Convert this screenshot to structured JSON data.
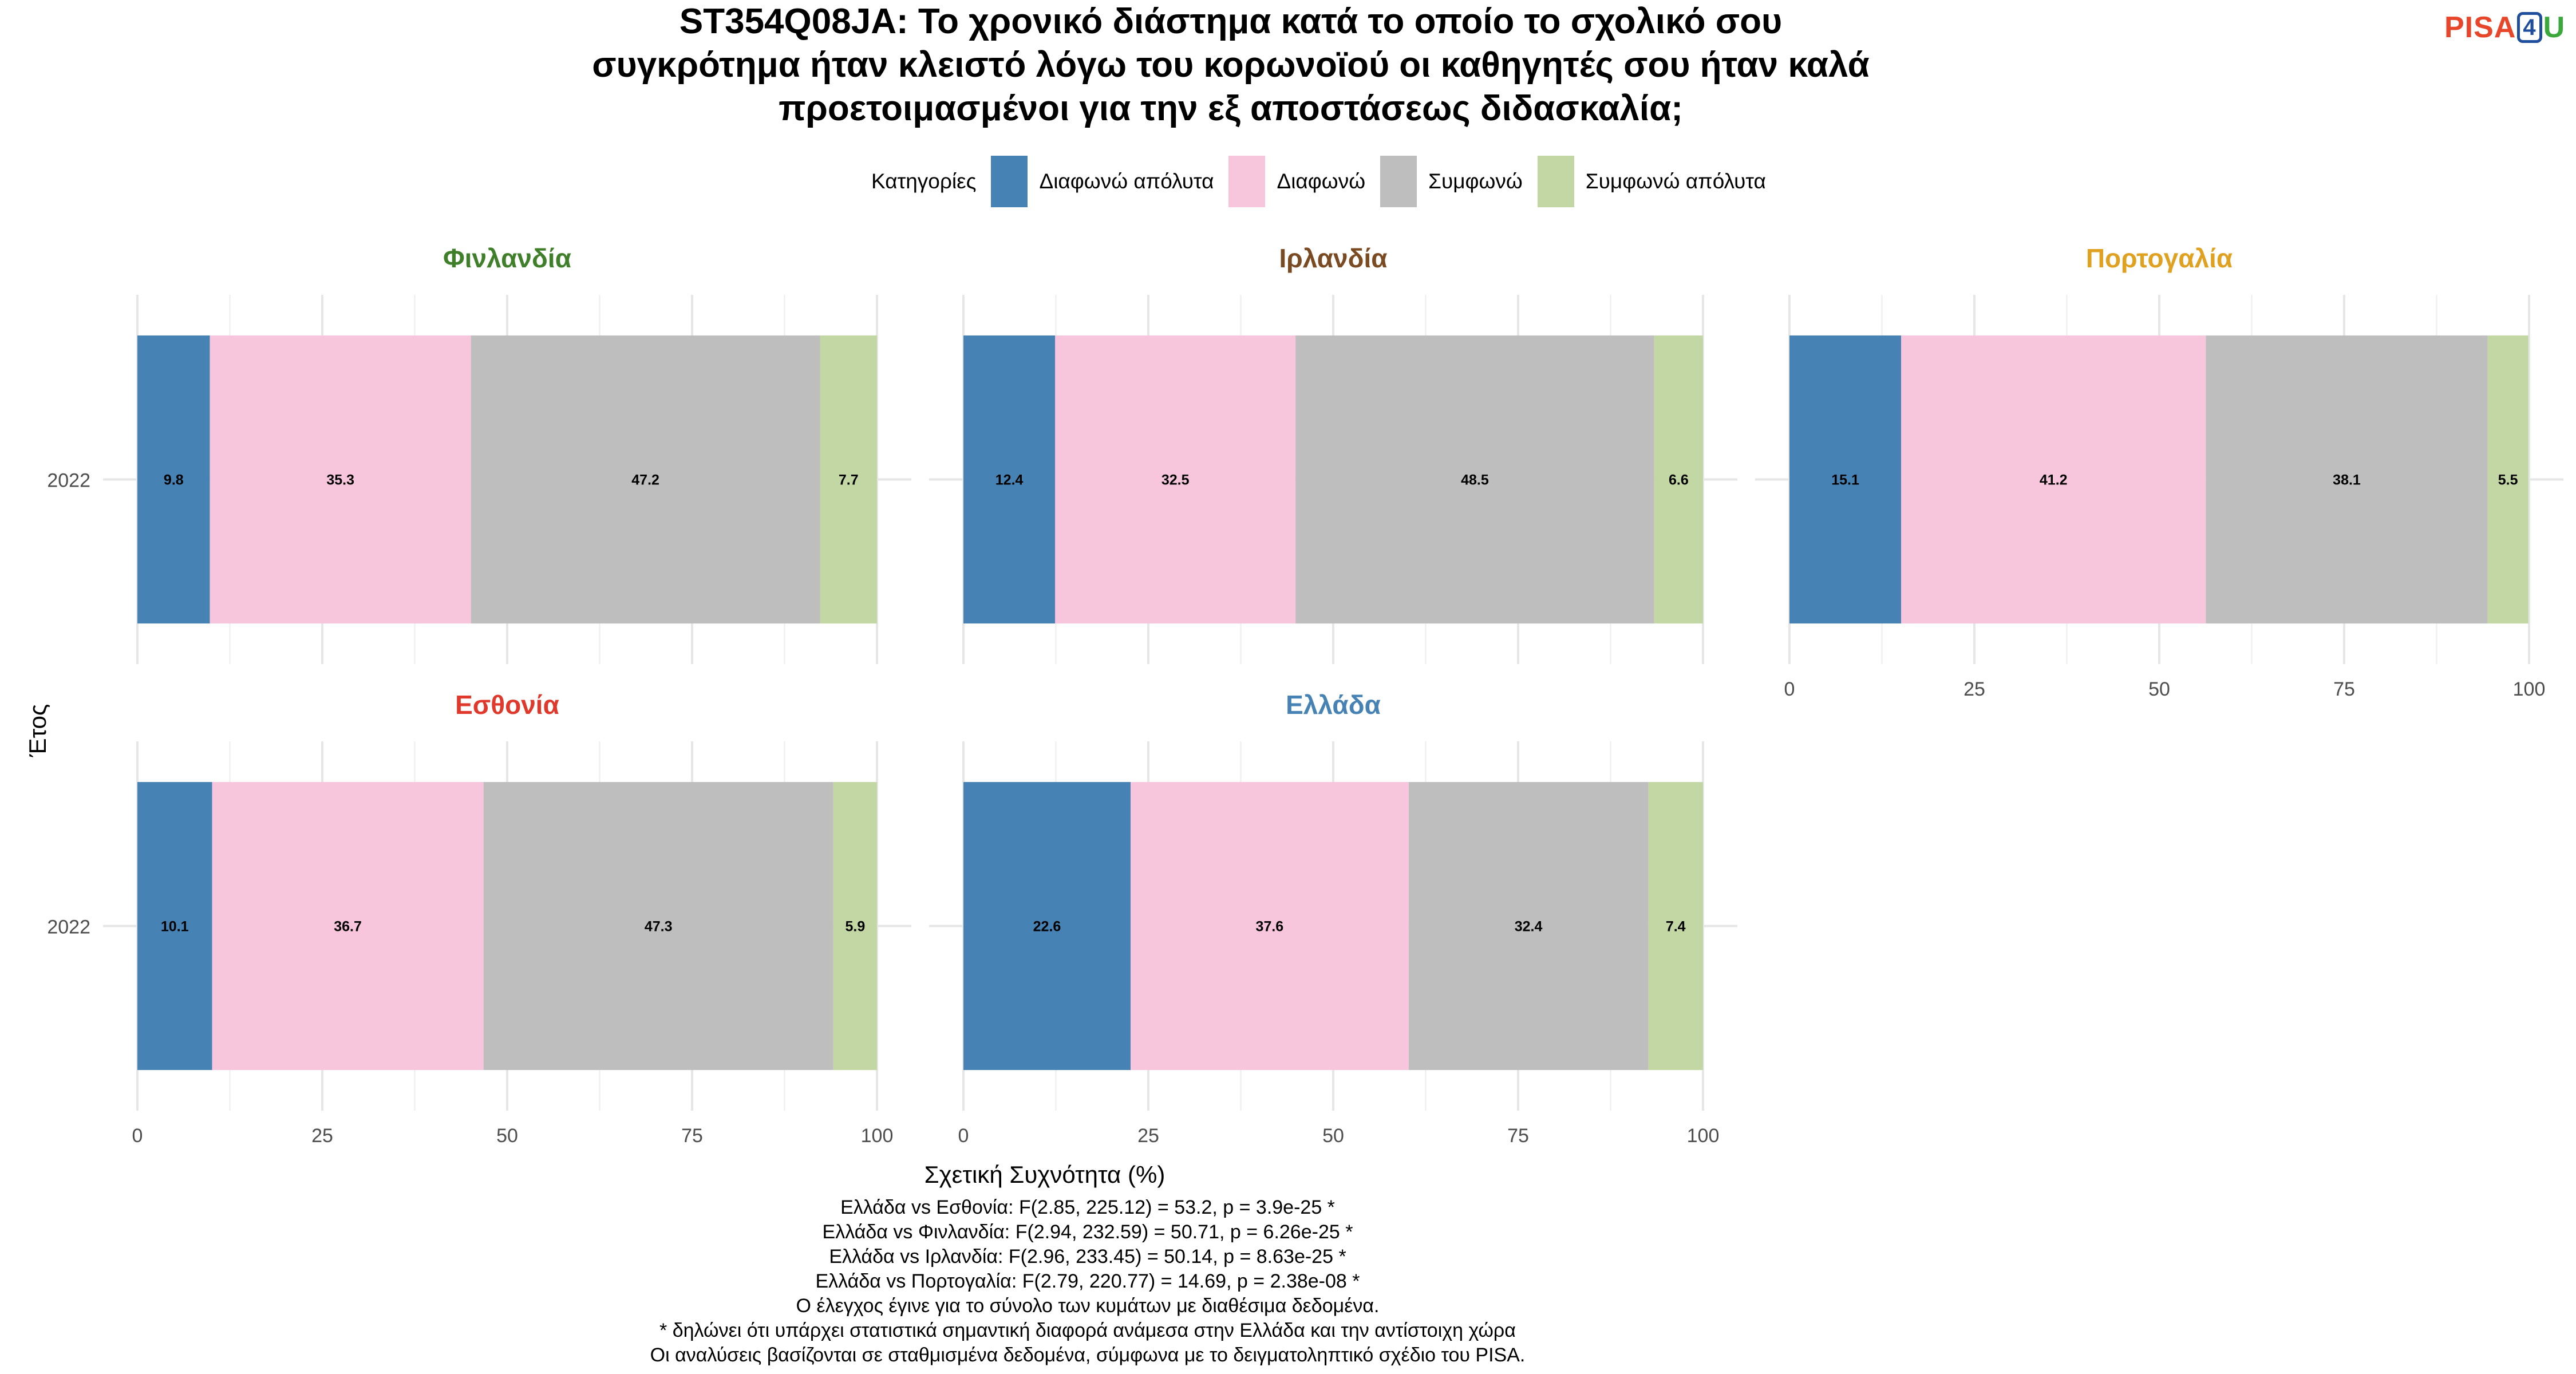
{
  "chart_data": {
    "type": "bar",
    "orientation": "horizontal-stacked",
    "title": "ST354Q08JA: Το χρονικό διάστημα κατά το οποίο το σχολικό σου συγκρότημα ήταν κλειστό λόγω του κορωνοϊού οι καθηγητές σου ήταν καλά προετοιμασμένοι για την εξ αποστάσεως διδασκαλία;",
    "title_lines": [
      "ST354Q08JA: Το χρονικό διάστημα κατά το οποίο το σχολικό σου",
      "συγκρότημα ήταν κλειστό λόγω του κορωνοϊού οι καθηγητές σου ήταν καλά",
      "προετοιμασμένοι για την εξ αποστάσεως διδασκαλία;"
    ],
    "xlabel": "Σχετική Συχνότητα (%)",
    "ylabel": "Έτος",
    "xlim": [
      0,
      100
    ],
    "xticks": [
      "0",
      "25",
      "50",
      "75",
      "100"
    ],
    "grid": true,
    "legend": {
      "title": "Κατηγορίες",
      "placement": "top",
      "items": [
        {
          "label": "Διαφωνώ απόλυτα",
          "color": "#4682b4"
        },
        {
          "label": "Διαφωνώ",
          "color": "#f7c6dc"
        },
        {
          "label": "Συμφωνώ",
          "color": "#bebebe"
        },
        {
          "label": "Συμφωνώ απόλυτα",
          "color": "#c2d7a4"
        }
      ]
    },
    "panels": [
      {
        "name": "Φινλανδία",
        "color": "#3f7f2a",
        "category": "2022",
        "values": [
          9.8,
          35.3,
          47.2,
          7.7
        ],
        "labels": [
          "9.8",
          "35.3",
          "47.2",
          "7.7"
        ]
      },
      {
        "name": "Ιρλανδία",
        "color": "#7a4a22",
        "category": "2022",
        "values": [
          12.4,
          32.5,
          48.5,
          6.6
        ],
        "labels": [
          "12.4",
          "32.5",
          "48.5",
          "6.6"
        ]
      },
      {
        "name": "Πορτογαλία",
        "color": "#e0a020",
        "category": "2022",
        "values": [
          15.1,
          41.2,
          38.1,
          5.5
        ],
        "labels": [
          "15.1",
          "41.2",
          "38.1",
          "5.5"
        ]
      },
      {
        "name": "Εσθονία",
        "color": "#e0382a",
        "category": "2022",
        "values": [
          10.1,
          36.7,
          47.3,
          5.9
        ],
        "labels": [
          "10.1",
          "36.7",
          "47.3",
          "5.9"
        ]
      },
      {
        "name": "Ελλάδα",
        "color": "#4682b4",
        "category": "2022",
        "values": [
          22.6,
          37.6,
          32.4,
          7.4
        ],
        "labels": [
          "22.6",
          "37.6",
          "32.4",
          "7.4"
        ]
      }
    ],
    "caption": [
      "Ελλάδα vs Εσθονία: F(2.85, 225.12) = 53.2, p = 3.9e-25 *",
      "Ελλάδα vs Φινλανδία: F(2.94, 232.59) = 50.71, p = 6.26e-25 *",
      "Ελλάδα vs Ιρλανδία: F(2.96, 233.45) = 50.14, p = 8.63e-25 *",
      "Ελλάδα vs Πορτογαλία: F(2.79, 220.77) = 14.69, p = 2.38e-08 *",
      "Ο έλεγχος έγινε για το σύνολο των κυμάτων με διαθέσιμα δεδομένα.",
      "* δηλώνει ότι υπάρχει στατιστικά σημαντική διαφορά ανάμεσα στην Ελλάδα και την αντίστοιχη χώρα",
      "Οι αναλύσεις βασίζονται σε σταθμισμένα δεδομένα, σύμφωνα με το δειγματοληπτικό σχέδιο του PISA."
    ]
  },
  "logo": {
    "part1": "PISA",
    "part2": "4",
    "part3": "U"
  }
}
